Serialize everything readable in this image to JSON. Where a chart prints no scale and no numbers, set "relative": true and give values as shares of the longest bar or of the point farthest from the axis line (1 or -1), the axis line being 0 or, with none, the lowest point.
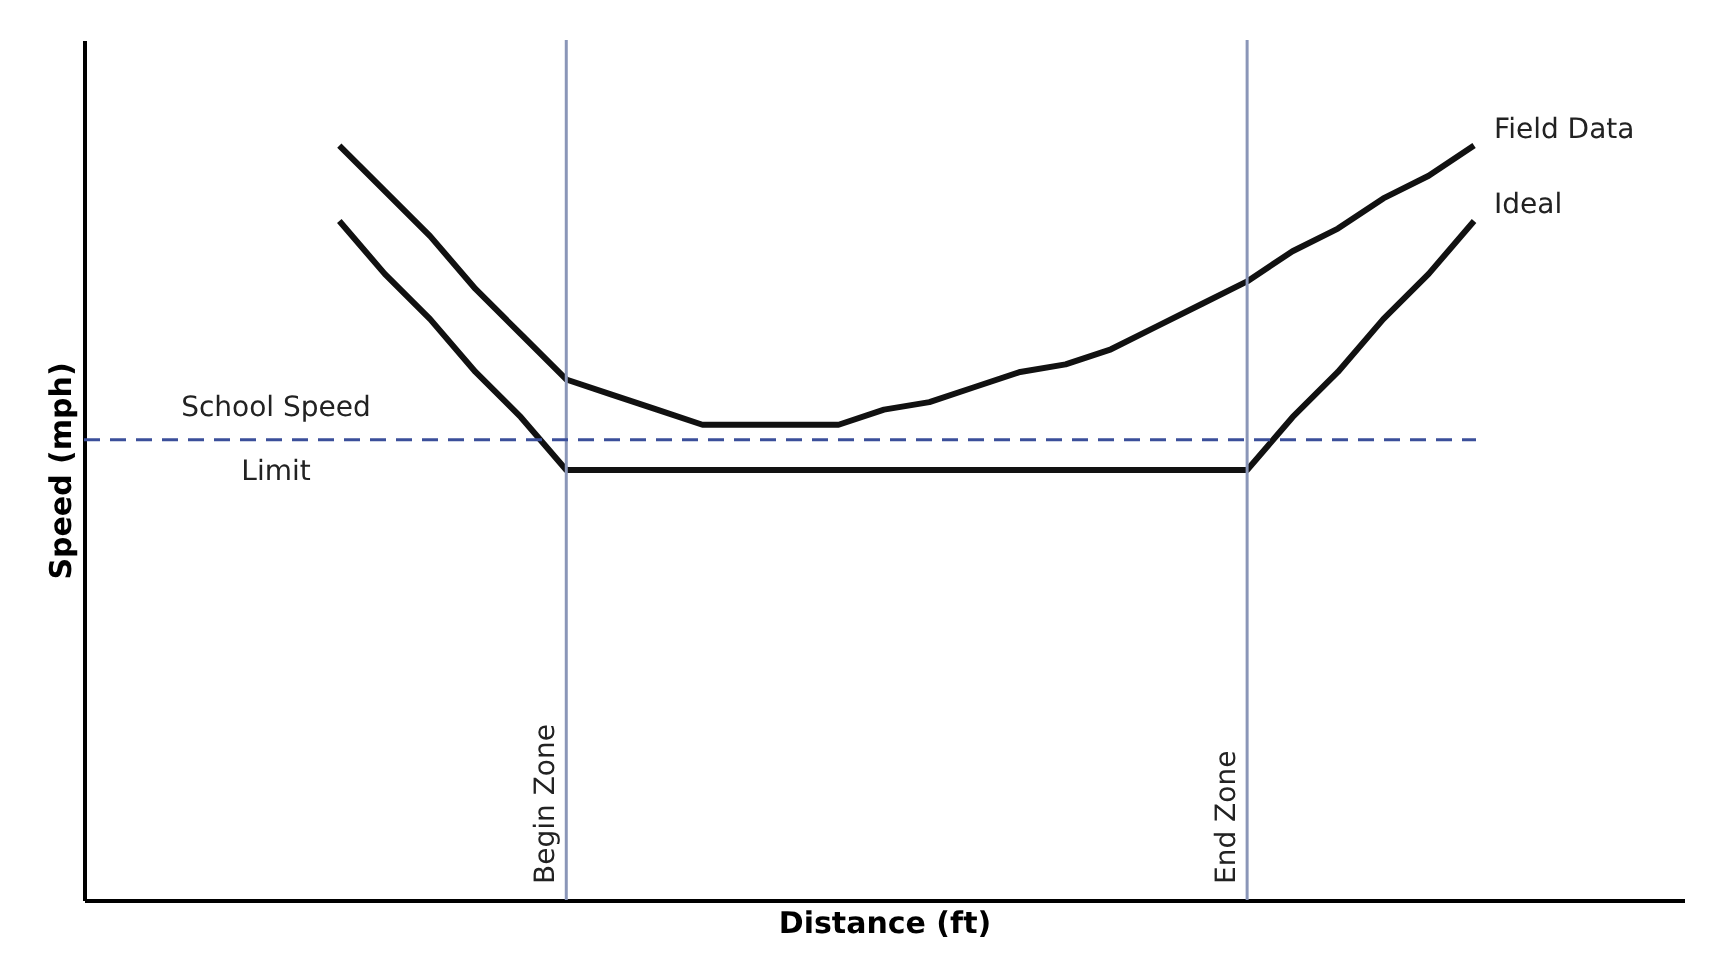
{
  "chart_data": {
    "type": "line",
    "relative": true,
    "xlabel": "Distance (ft)",
    "ylabel": "Speed (mph)",
    "tick_labels": false,
    "annotations": [
      "Begin Zone",
      "End Zone"
    ],
    "grid": false,
    "legend": false,
    "marker": "none",
    "line_style": "solid",
    "categories": [
      null,
      null,
      null,
      null,
      null,
      null,
      null,
      null,
      null,
      null,
      null,
      null,
      null,
      null,
      null,
      null,
      null,
      null,
      null,
      null,
      null,
      null,
      null,
      null,
      null,
      null,
      null,
      null,
      null,
      null,
      null,
      null,
      null,
      null,
      null
    ],
    "series": [
      {
        "name": "Field Data",
        "color": "#111111",
        "values": [
          null,
          null,
          null,
          null,
          null,
          1.0,
          0.94,
          0.88,
          0.81,
          0.75,
          0.69,
          0.67,
          0.65,
          0.63,
          0.63,
          0.63,
          0.63,
          0.65,
          0.66,
          0.68,
          0.7,
          0.71,
          0.73,
          0.76,
          0.79,
          0.82,
          0.86,
          0.89,
          0.93,
          0.96,
          1.0,
          null,
          null,
          null,
          null
        ]
      },
      {
        "name": "Ideal",
        "color": "#111111",
        "values": [
          null,
          null,
          null,
          null,
          null,
          0.9,
          0.83,
          0.77,
          0.7,
          0.64,
          0.57,
          0.57,
          0.57,
          0.57,
          0.57,
          0.57,
          0.57,
          0.57,
          0.57,
          0.57,
          0.57,
          0.57,
          0.57,
          0.57,
          0.57,
          0.57,
          0.64,
          0.7,
          0.77,
          0.83,
          0.9,
          null,
          null,
          null,
          null
        ]
      }
    ],
    "ref_lines": [
      {
        "axis": "y",
        "value": 0.61,
        "label": "School Speed\nLimit",
        "color": "#3b4f9a",
        "line_style": "dashed"
      }
    ]
  }
}
